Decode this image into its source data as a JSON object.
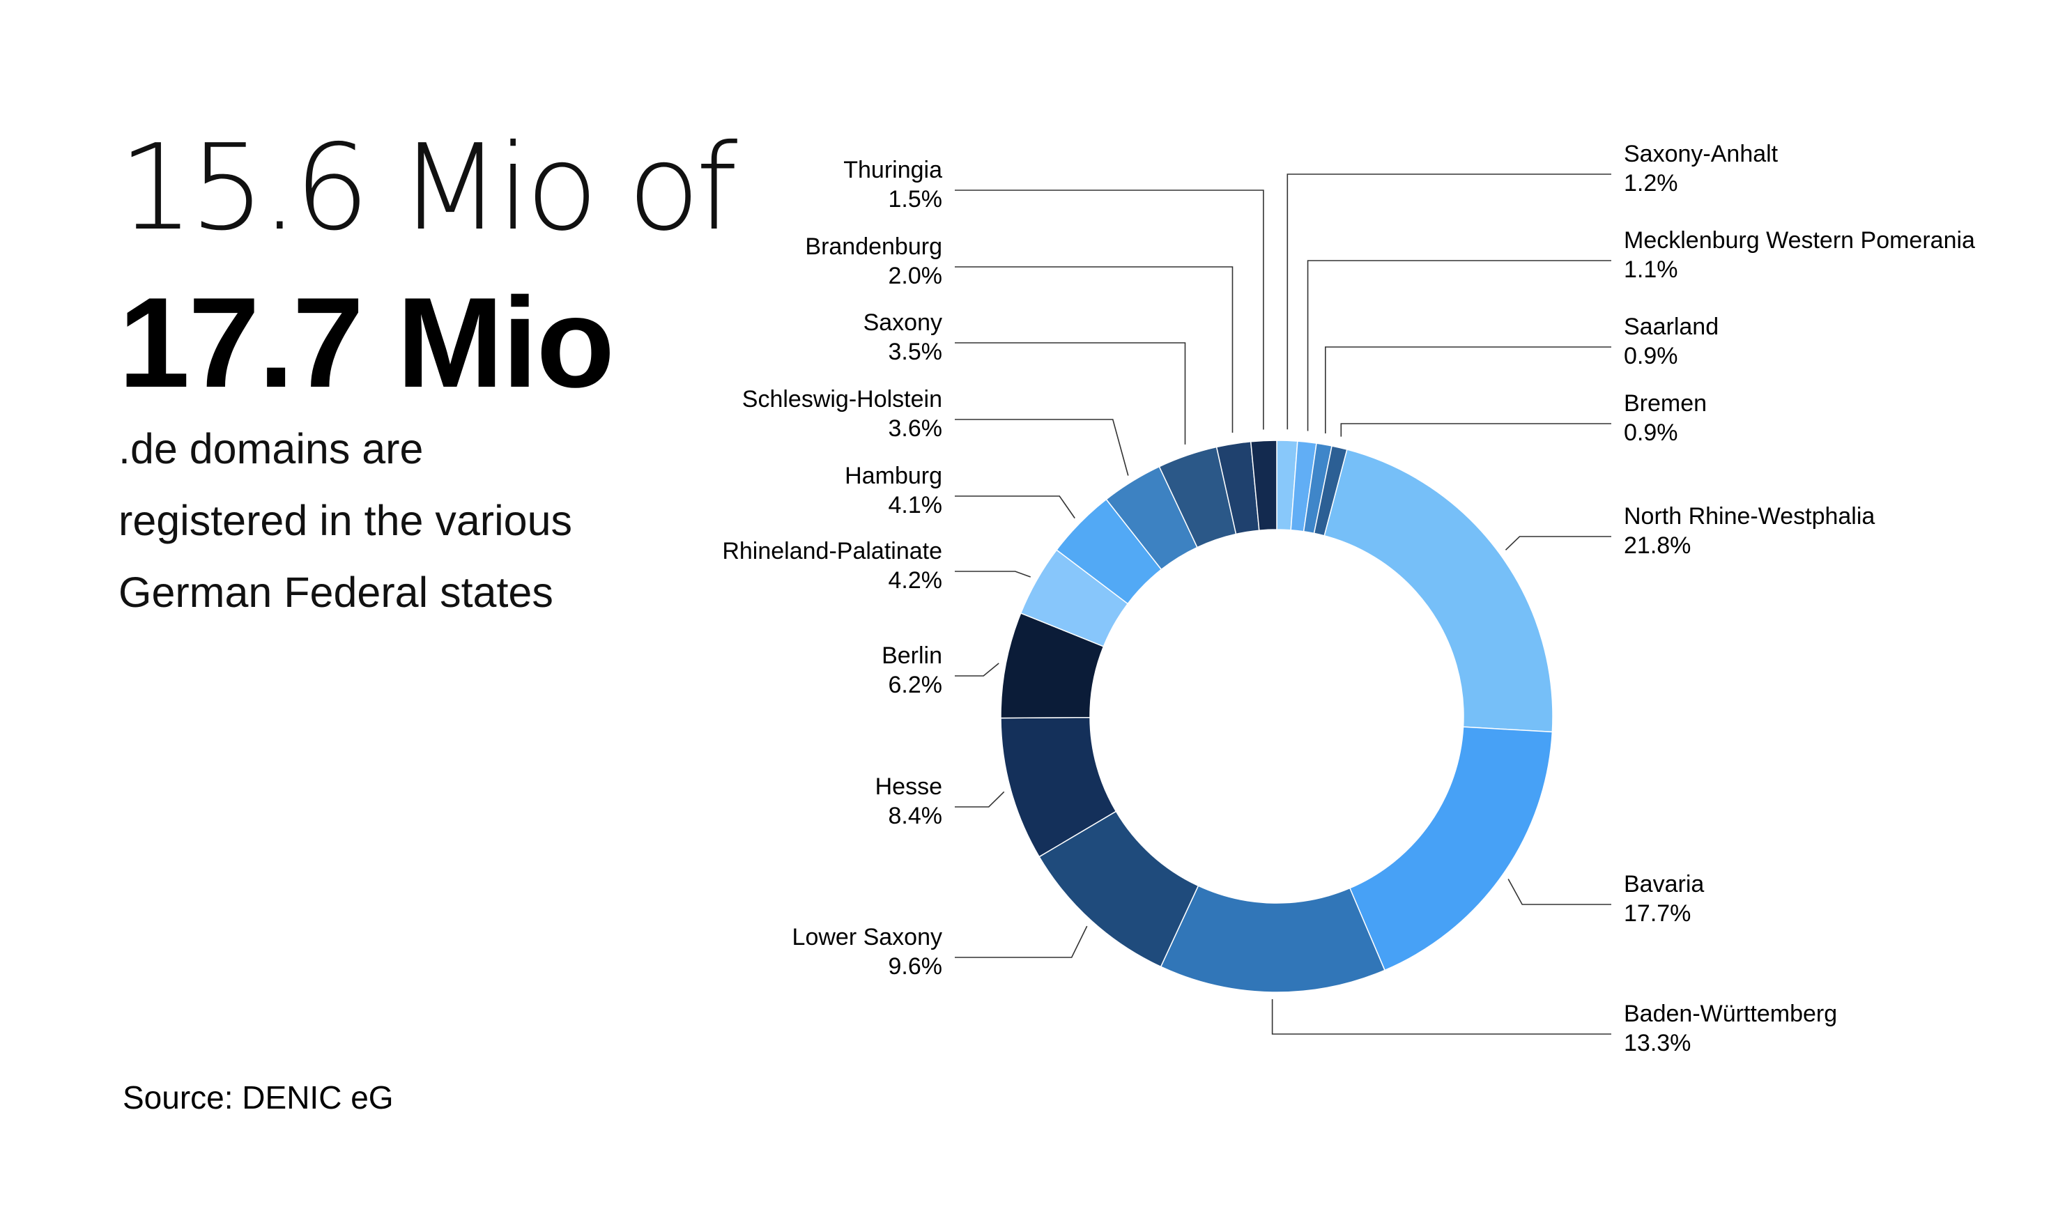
{
  "headline": {
    "line1": "15.6 Mio of",
    "line2": "17.7 Mio",
    "line3": ".de domains are",
    "line4": "registered in the various",
    "line5": "German Federal states"
  },
  "source": "Source: DENIC eG",
  "chart_data": {
    "type": "pie",
    "subtype": "donut",
    "title": "",
    "slices": [
      {
        "label": "Saxony-Anhalt",
        "value": 1.2,
        "value_label": "1.2%",
        "color": "#88c8fa"
      },
      {
        "label": "Mecklenburg Western Pomerania",
        "value": 1.1,
        "value_label": "1.1%",
        "color": "#61aef5"
      },
      {
        "label": "Saarland",
        "value": 0.9,
        "value_label": "0.9%",
        "color": "#3f86c9"
      },
      {
        "label": "Bremen",
        "value": 0.9,
        "value_label": "0.9%",
        "color": "#2c5f94"
      },
      {
        "label": "North Rhine-Westphalia",
        "value": 21.8,
        "value_label": "21.8%",
        "color": "#76bff8"
      },
      {
        "label": "Bavaria",
        "value": 17.7,
        "value_label": "17.7%",
        "color": "#47a1f6"
      },
      {
        "label": "Baden-Württemberg",
        "value": 13.3,
        "value_label": "13.3%",
        "color": "#3176b8"
      },
      {
        "label": "Lower Saxony",
        "value": 9.6,
        "value_label": "9.6%",
        "color": "#1f4b7c"
      },
      {
        "label": "Hesse",
        "value": 8.4,
        "value_label": "8.4%",
        "color": "#14305a"
      },
      {
        "label": "Berlin",
        "value": 6.2,
        "value_label": "6.2%",
        "color": "#0b1c38"
      },
      {
        "label": "Rhineland-Palatinate",
        "value": 4.2,
        "value_label": "4.2%",
        "color": "#87c6fb"
      },
      {
        "label": "Hamburg",
        "value": 4.1,
        "value_label": "4.1%",
        "color": "#52a9f5"
      },
      {
        "label": "Schleswig-Holstein",
        "value": 3.6,
        "value_label": "3.6%",
        "color": "#3d82c2"
      },
      {
        "label": "Saxony",
        "value": 3.5,
        "value_label": "3.5%",
        "color": "#2b5888"
      },
      {
        "label": "Brandenburg",
        "value": 2.0,
        "value_label": "2.0%",
        "color": "#1f416e"
      },
      {
        "label": "Thuringia",
        "value": 1.5,
        "value_label": "1.5%",
        "color": "#132a4f"
      }
    ]
  }
}
